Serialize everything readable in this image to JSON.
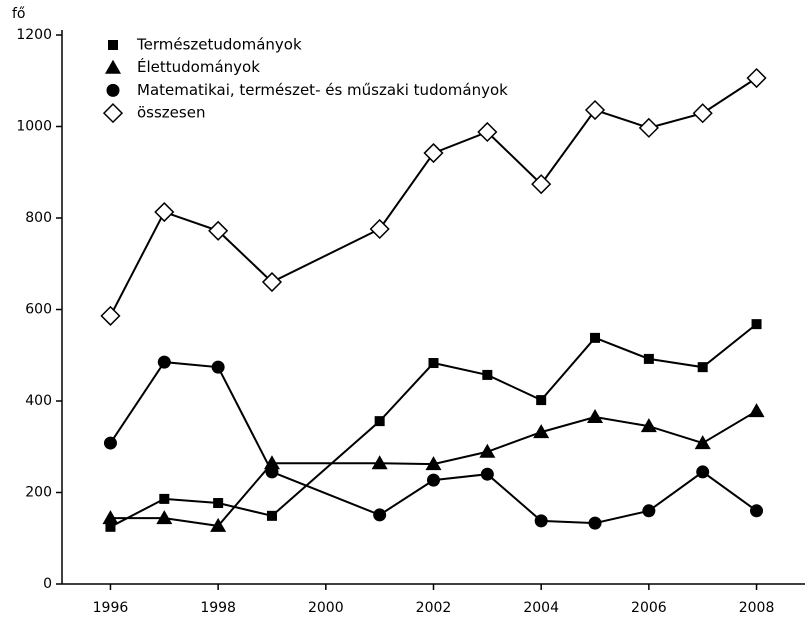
{
  "chart_data": {
    "type": "line",
    "y_unit": "fő",
    "x": [
      1996,
      1997,
      1998,
      1999,
      2001,
      2002,
      2003,
      2004,
      2005,
      2006,
      2007,
      2008
    ],
    "series": [
      {
        "name": "Természetudományok",
        "color": "#000000",
        "marker": "square",
        "values": [
          125,
          186,
          177,
          149,
          356,
          483,
          457,
          402,
          538,
          492,
          474,
          568
        ]
      },
      {
        "name": "Élettudományok",
        "color": "#000000",
        "marker": "triangle",
        "values": [
          144,
          144,
          127,
          264,
          264,
          262,
          289,
          332,
          365,
          345,
          308,
          378
        ]
      },
      {
        "name": "Matematikai, természet- és műszaki tudományok",
        "color": "#000000",
        "marker": "circle",
        "values": [
          308,
          485,
          474,
          245,
          151,
          227,
          240,
          138,
          133,
          160,
          245,
          160
        ]
      },
      {
        "name": "összesen",
        "color": "#000000",
        "marker": "diamond-open",
        "values": [
          586,
          813,
          772,
          660,
          776,
          942,
          988,
          874,
          1036,
          997,
          1029,
          1106
        ]
      }
    ],
    "xlim": [
      1995.1,
      2008.9
    ],
    "xticks": [
      1996,
      1998,
      2000,
      2002,
      2004,
      2006,
      2008
    ],
    "ylim": [
      0,
      1200
    ],
    "yticks": [
      0,
      200,
      400,
      600,
      800,
      1000,
      1200
    ],
    "grid": false,
    "legend": "top-left"
  }
}
